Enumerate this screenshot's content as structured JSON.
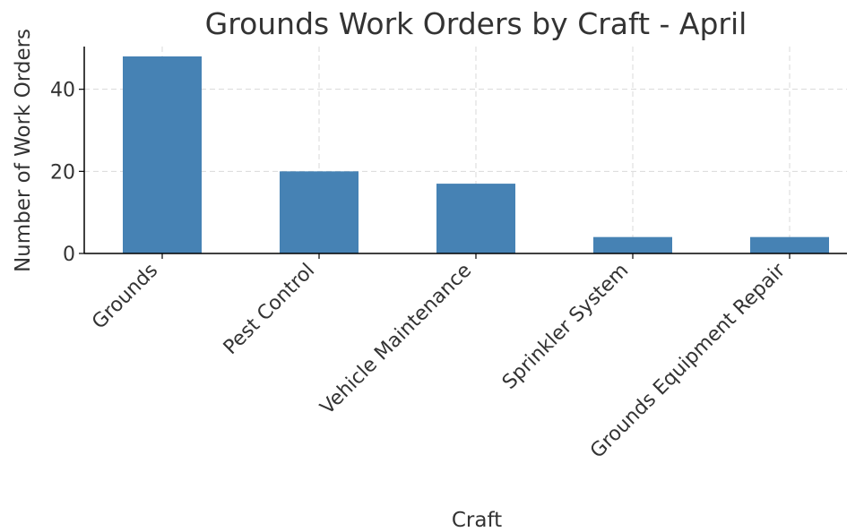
{
  "chart_data": {
    "type": "bar",
    "title": "Grounds Work Orders by Craft - April",
    "xlabel": "Craft",
    "ylabel": "Number of Work Orders",
    "categories": [
      "Grounds",
      "Pest Control",
      "Vehicle Maintenance",
      "Sprinkler System",
      "Grounds Equipment Repair"
    ],
    "values": [
      48,
      20,
      17,
      4,
      4
    ],
    "ylim": [
      0,
      50.4
    ],
    "yticks": [
      0,
      20,
      40
    ],
    "grid": true,
    "bar_color": "#4682b4"
  }
}
